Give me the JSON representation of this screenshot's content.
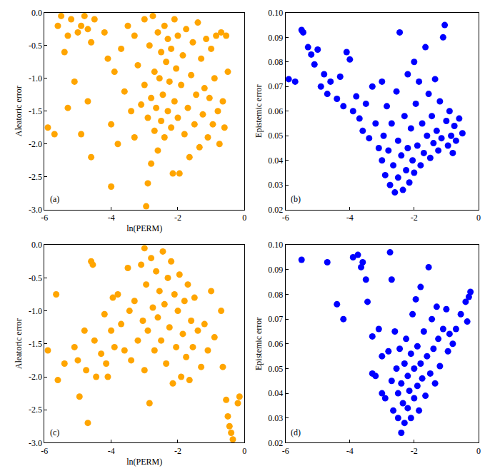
{
  "chart_data": [
    {
      "type": "scatter",
      "panel_label": "(a)",
      "x_label": "ln(PERM)",
      "y_label": "Aleatoric error",
      "color": "#ffa500",
      "marker": "circle",
      "xlim": [
        -6,
        0
      ],
      "xticks": [
        -6,
        -4,
        -2,
        0
      ],
      "ylim": [
        -3,
        0
      ],
      "yticks": [
        {
          "value": -3,
          "label": "-3.0"
        },
        {
          "value": -2.5,
          "label": "-2.5"
        },
        {
          "value": -2,
          "label": "-2.0"
        },
        {
          "value": -1.5,
          "label": "-1.5"
        },
        {
          "value": -1,
          "label": "-1.0"
        },
        {
          "value": -0.5,
          "label": "-0.5"
        },
        {
          "value": 0,
          "label": "0.0"
        }
      ],
      "x": [
        -5.9,
        -5.7,
        -5.6,
        -5.5,
        -5.3,
        -5.2,
        -5.1,
        -5.0,
        -4.9,
        -4.8,
        -4.7,
        -4.6,
        -4.7,
        -4.9,
        -4.6,
        -5.3,
        -5.4,
        -4.5,
        -4.2,
        -4.1,
        -4.0,
        -4.0,
        -3.9,
        -3.8,
        -3.7,
        -3.6,
        -3.5,
        -3.4,
        -3.3,
        -3.3,
        -3.2,
        -3.1,
        -3.0,
        -3.0,
        -2.95,
        -2.9,
        -2.9,
        -2.85,
        -2.8,
        -2.8,
        -2.75,
        -2.7,
        -2.7,
        -2.65,
        -2.6,
        -2.6,
        -2.55,
        -2.5,
        -2.5,
        -2.45,
        -2.4,
        -2.4,
        -2.35,
        -2.3,
        -2.3,
        -2.25,
        -2.2,
        -2.2,
        -2.15,
        -2.1,
        -2.1,
        -2.05,
        -2.0,
        -2.0,
        -1.95,
        -1.9,
        -1.85,
        -1.8,
        -1.75,
        -1.7,
        -1.65,
        -1.6,
        -1.55,
        -1.5,
        -1.45,
        -1.4,
        -1.35,
        -1.3,
        -1.25,
        -1.2,
        -1.15,
        -1.1,
        -1.05,
        -1.0,
        -0.95,
        -0.9,
        -0.85,
        -0.8,
        -0.75,
        -0.7,
        -0.65,
        -0.6,
        -0.55,
        -0.5
      ],
      "values": [
        -1.75,
        -1.85,
        -0.2,
        -0.05,
        -0.35,
        -0.1,
        -1.05,
        -0.3,
        -0.2,
        -0.05,
        -0.25,
        -0.45,
        -1.35,
        -1.85,
        -2.2,
        -1.45,
        -0.6,
        -0.1,
        -0.3,
        -0.7,
        -1.7,
        -2.65,
        -0.9,
        -2.0,
        -0.55,
        -1.2,
        -0.2,
        -1.5,
        -0.35,
        -1.9,
        -0.8,
        -1.4,
        -0.1,
        -1.1,
        -2.95,
        -2.6,
        -1.6,
        -0.5,
        -1.3,
        -2.3,
        -0.05,
        -1.8,
        -0.9,
        -1.45,
        -0.3,
        -2.1,
        -1.0,
        -1.65,
        -0.6,
        -1.25,
        -0.2,
        -1.9,
        -0.75,
        -1.5,
        -0.4,
        -1.05,
        -1.75,
        -0.55,
        -2.45,
        -0.1,
        -1.35,
        -0.85,
        -1.6,
        -0.35,
        -2.45,
        -1.1,
        -0.65,
        -1.85,
        -0.25,
        -1.45,
        -2.2,
        -0.95,
        -0.45,
        -1.7,
        -1.25,
        -0.15,
        -2.05,
        -0.7,
        -1.55,
        -1.15,
        -0.4,
        -1.9,
        -1.3,
        -0.55,
        -1.7,
        -1.0,
        -0.35,
        -1.5,
        -2.0,
        -0.3,
        -1.35,
        -1.75,
        -0.35,
        -0.9
      ]
    },
    {
      "type": "scatter",
      "panel_label": "(b)",
      "y_label": "Epistemic error",
      "color": "#0000ff",
      "marker": "circle",
      "xlim": [
        -6,
        0
      ],
      "xticks": [
        -6,
        -4,
        -2,
        0
      ],
      "ylim": [
        0.02,
        0.1
      ],
      "yticks": [
        0.02,
        0.03,
        0.04,
        0.05,
        0.06,
        0.07,
        0.08,
        0.09,
        {
          "value": 0.1,
          "label": "0.10"
        }
      ],
      "x": [
        -5.9,
        -5.7,
        -5.5,
        -5.45,
        -5.3,
        -5.2,
        -5.1,
        -5.0,
        -4.9,
        -4.8,
        -4.7,
        -4.6,
        -4.4,
        -4.3,
        -4.2,
        -4.1,
        -4.0,
        -3.9,
        -3.8,
        -3.7,
        -3.6,
        -3.5,
        -3.4,
        -3.3,
        -3.2,
        -3.1,
        -3.0,
        -3.0,
        -2.95,
        -2.9,
        -2.85,
        -2.8,
        -2.75,
        -2.7,
        -2.65,
        -2.6,
        -2.55,
        -2.5,
        -2.5,
        -2.45,
        -2.4,
        -2.35,
        -2.3,
        -2.25,
        -2.2,
        -2.2,
        -2.15,
        -2.1,
        -2.05,
        -2.0,
        -2.0,
        -1.95,
        -1.9,
        -1.85,
        -1.8,
        -1.75,
        -1.7,
        -1.65,
        -1.6,
        -1.55,
        -1.5,
        -1.45,
        -1.4,
        -1.35,
        -1.3,
        -1.25,
        -1.2,
        -1.15,
        -1.1,
        -1.05,
        -1.0,
        -0.95,
        -0.9,
        -0.85,
        -0.8,
        -0.75,
        -0.7,
        -0.6,
        -0.5
      ],
      "values": [
        0.073,
        0.072,
        0.093,
        0.092,
        0.086,
        0.083,
        0.079,
        0.085,
        0.07,
        0.075,
        0.067,
        0.072,
        0.065,
        0.074,
        0.062,
        0.084,
        0.081,
        0.06,
        0.066,
        0.057,
        0.052,
        0.063,
        0.049,
        0.07,
        0.055,
        0.045,
        0.072,
        0.04,
        0.05,
        0.034,
        0.062,
        0.044,
        0.03,
        0.055,
        0.038,
        0.027,
        0.068,
        0.048,
        0.033,
        0.092,
        0.042,
        0.028,
        0.058,
        0.036,
        0.075,
        0.045,
        0.031,
        0.053,
        0.04,
        0.08,
        0.035,
        0.063,
        0.046,
        0.072,
        0.038,
        0.055,
        0.043,
        0.086,
        0.05,
        0.067,
        0.041,
        0.058,
        0.047,
        0.073,
        0.052,
        0.044,
        0.064,
        0.049,
        0.09,
        0.095,
        0.056,
        0.046,
        0.06,
        0.05,
        0.043,
        0.054,
        0.048,
        0.057,
        0.051
      ]
    },
    {
      "type": "scatter",
      "panel_label": "(c)",
      "x_label": "ln(PERM)",
      "y_label": "Aleatoric error",
      "color": "#ffa500",
      "marker": "circle",
      "xlim": [
        -6,
        0
      ],
      "xticks": [
        -6,
        -4,
        -2,
        0
      ],
      "ylim": [
        -3,
        0
      ],
      "yticks": [
        {
          "value": -3,
          "label": "-3.0"
        },
        {
          "value": -2.5,
          "label": "-2.5"
        },
        {
          "value": -2,
          "label": "-2.0"
        },
        {
          "value": -1.5,
          "label": "-1.5"
        },
        {
          "value": -1,
          "label": "-1.0"
        },
        {
          "value": -0.5,
          "label": "-0.5"
        },
        {
          "value": 0,
          "label": "0.0"
        }
      ],
      "x": [
        -5.9,
        -5.65,
        -5.6,
        -5.4,
        -5.1,
        -5.0,
        -4.95,
        -4.8,
        -4.75,
        -4.7,
        -4.6,
        -4.55,
        -4.5,
        -4.45,
        -4.3,
        -4.2,
        -4.15,
        -4.1,
        -4.0,
        -3.95,
        -3.9,
        -3.8,
        -3.7,
        -3.6,
        -3.5,
        -3.45,
        -3.4,
        -3.3,
        -3.2,
        -3.1,
        -3.05,
        -3.0,
        -3.0,
        -2.95,
        -2.9,
        -2.85,
        -2.8,
        -2.75,
        -2.7,
        -2.65,
        -2.6,
        -2.55,
        -2.5,
        -2.45,
        -2.4,
        -2.35,
        -2.3,
        -2.25,
        -2.2,
        -2.15,
        -2.1,
        -2.05,
        -2.0,
        -1.95,
        -1.9,
        -1.85,
        -1.8,
        -1.75,
        -1.7,
        -1.65,
        -1.6,
        -1.55,
        -1.5,
        -1.4,
        -1.3,
        -1.2,
        -1.1,
        -1.0,
        -0.9,
        -0.7,
        -0.65,
        -0.55,
        -0.5,
        -0.45,
        -0.4,
        -0.35,
        -0.15,
        -0.2
      ],
      "values": [
        -1.6,
        -0.75,
        -2.05,
        -1.8,
        -1.55,
        -1.75,
        -2.3,
        -1.3,
        -1.9,
        -2.7,
        -0.25,
        -0.3,
        -1.45,
        -2.0,
        -1.65,
        -1.05,
        -1.8,
        -2.0,
        -1.3,
        -0.8,
        -1.55,
        -0.75,
        -1.2,
        -1.6,
        -0.35,
        -1.0,
        -1.75,
        -0.85,
        -1.45,
        -0.3,
        -1.15,
        -0.05,
        -1.9,
        -0.6,
        -1.3,
        -2.4,
        -0.2,
        -0.95,
        -1.6,
        -0.4,
        -1.1,
        -0.7,
        -1.45,
        -0.1,
        -0.9,
        -1.8,
        -0.5,
        -1.25,
        -0.25,
        -2.1,
        -0.75,
        -1.55,
        -1.0,
        -0.45,
        -2.0,
        -1.35,
        -0.85,
        -1.7,
        -0.6,
        -2.05,
        -1.15,
        -1.55,
        -0.8,
        -1.3,
        -1.85,
        -1.2,
        -1.6,
        -0.7,
        -1.4,
        -1.0,
        -1.85,
        -2.35,
        -2.6,
        -2.75,
        -2.85,
        -2.95,
        -2.3,
        -2.4
      ]
    },
    {
      "type": "scatter",
      "panel_label": "(d)",
      "y_label": "Epistemic error",
      "color": "#0000ff",
      "marker": "circle",
      "xlim": [
        -6,
        0
      ],
      "xticks": [
        -6,
        -4,
        -2,
        0
      ],
      "ylim": [
        0.02,
        0.1
      ],
      "yticks": [
        0.02,
        0.03,
        0.04,
        0.05,
        0.06,
        0.07,
        0.08,
        0.09,
        {
          "value": 0.1,
          "label": "0.10"
        }
      ],
      "x": [
        -5.5,
        -4.7,
        -4.4,
        -4.2,
        -3.9,
        -3.75,
        -3.6,
        -3.65,
        -3.5,
        -3.45,
        -3.3,
        -3.2,
        -3.3,
        -3.1,
        -3.0,
        -3.0,
        -2.9,
        -2.8,
        -2.75,
        -2.7,
        -2.7,
        -2.65,
        -2.6,
        -2.55,
        -2.5,
        -2.5,
        -2.45,
        -2.4,
        -2.4,
        -2.35,
        -2.3,
        -2.3,
        -2.25,
        -2.2,
        -2.2,
        -2.15,
        -2.1,
        -2.1,
        -2.05,
        -2.0,
        -2.0,
        -1.95,
        -1.9,
        -1.9,
        -1.85,
        -1.8,
        -1.8,
        -1.75,
        -1.7,
        -1.65,
        -1.6,
        -1.55,
        -1.5,
        -1.45,
        -1.4,
        -1.35,
        -1.3,
        -1.25,
        -1.2,
        -1.1,
        -1.0,
        -0.95,
        -0.9,
        -0.8,
        -0.7,
        -0.55,
        -0.4,
        -0.3,
        -0.25,
        -0.35
      ],
      "values": [
        0.094,
        0.093,
        0.076,
        0.07,
        0.095,
        0.096,
        0.093,
        0.091,
        0.086,
        0.077,
        0.063,
        0.047,
        0.048,
        0.066,
        0.055,
        0.04,
        0.038,
        0.057,
        0.097,
        0.086,
        0.045,
        0.033,
        0.065,
        0.05,
        0.04,
        0.03,
        0.058,
        0.044,
        0.024,
        0.036,
        0.052,
        0.028,
        0.062,
        0.047,
        0.034,
        0.041,
        0.056,
        0.03,
        0.072,
        0.05,
        0.038,
        0.078,
        0.043,
        0.059,
        0.033,
        0.083,
        0.052,
        0.046,
        0.065,
        0.039,
        0.055,
        0.091,
        0.048,
        0.07,
        0.058,
        0.044,
        0.075,
        0.062,
        0.051,
        0.066,
        0.074,
        0.057,
        0.064,
        0.06,
        0.066,
        0.072,
        0.077,
        0.079,
        0.081,
        0.069
      ]
    }
  ]
}
